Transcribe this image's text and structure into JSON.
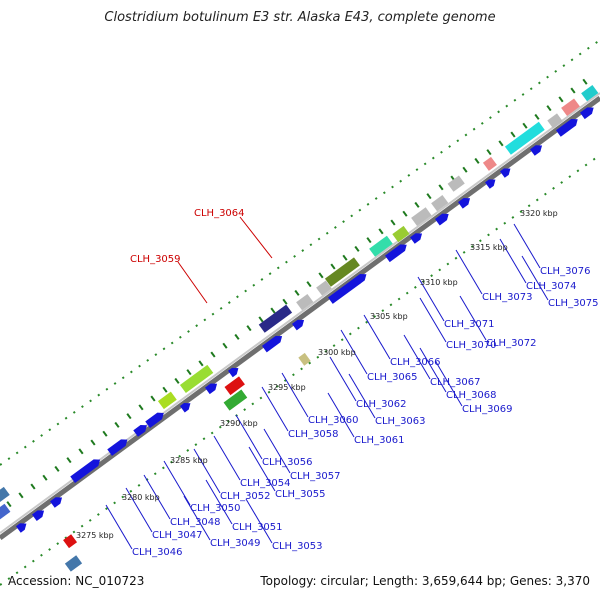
{
  "title": "Clostridium botulinum E3 str. Alaska E43, complete genome",
  "footer": {
    "accession": "Accession: NC_010723",
    "summary": "Topology: circular; Length: 3,659,644 bp; Genes: 3,370"
  },
  "ticks": [
    "3275 kbp",
    "3280 kbp",
    "3285 kbp",
    "3290 kbp",
    "3295 kbp",
    "3300 kbp",
    "3305 kbp",
    "3310 kbp",
    "3315 kbp",
    "3320 kbp"
  ],
  "highlighted_genes": [
    "CLH_3059",
    "CLH_3064"
  ],
  "gene_labels": [
    "CLH_3046",
    "CLH_3047",
    "CLH_3048",
    "CLH_3049",
    "CLH_3050",
    "CLH_3051",
    "CLH_3052",
    "CLH_3053",
    "CLH_3054",
    "CLH_3055",
    "CLH_3056",
    "CLH_3057",
    "CLH_3058",
    "CLH_3060",
    "CLH_3061",
    "CLH_3062",
    "CLH_3063",
    "CLH_3065",
    "CLH_3066",
    "CLH_3067",
    "CLH_3068",
    "CLH_3069",
    "CLH_3070",
    "CLH_3071",
    "CLH_3072",
    "CLH_3073",
    "CLH_3074",
    "CLH_3075",
    "CLH_3076"
  ],
  "colors": {
    "backbone": "#8a8a8a",
    "gene_forward": "#1414dc",
    "tick_green": "#1f7a1f",
    "highlight": "#cc0000",
    "label": "#1a1acc"
  }
}
